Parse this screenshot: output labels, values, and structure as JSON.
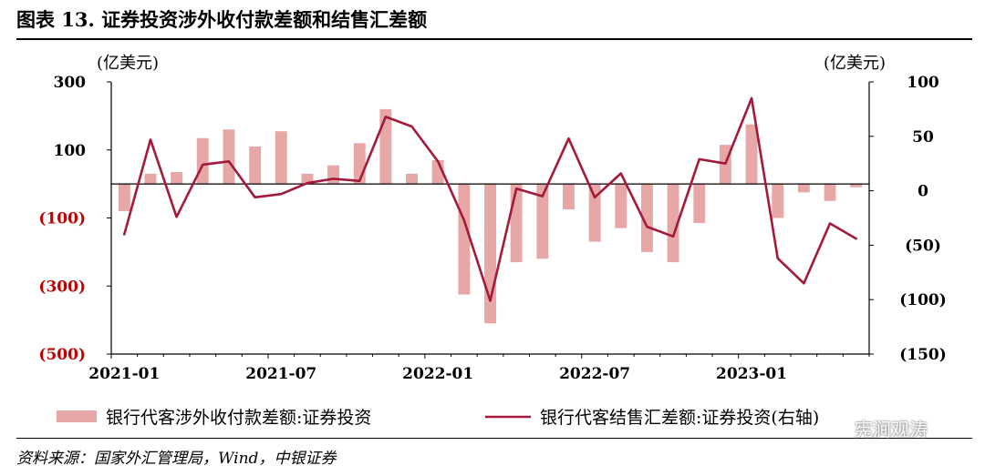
{
  "title": "图表 13. 证券投资涉外收付款差额和结售汇差额",
  "source": "资料来源：国家外汇管理局，Wind，中银证券",
  "watermark": "宪涧观涛",
  "colors": {
    "bar": "#e8a7a7",
    "line": "#a31a3a",
    "negative_tick": "#c00000",
    "axis": "#000000"
  },
  "chart_data": {
    "type": "bar+line",
    "left_unit": "(亿美元)",
    "right_unit": "(亿美元)",
    "left_ylim": [
      -500,
      300
    ],
    "right_ylim": [
      -150,
      100
    ],
    "left_ticks": [
      300,
      100,
      -100,
      -300,
      -500
    ],
    "left_tick_labels": [
      "300",
      "100",
      "(100)",
      "(300)",
      "(500)"
    ],
    "right_ticks": [
      100,
      50,
      0,
      -50,
      -100,
      -150
    ],
    "right_tick_labels": [
      "100",
      "50",
      "0",
      "(50)",
      "(100)",
      "(150)"
    ],
    "x": [
      "2021-01",
      "2021-02",
      "2021-03",
      "2021-04",
      "2021-05",
      "2021-06",
      "2021-07",
      "2021-08",
      "2021-09",
      "2021-10",
      "2021-11",
      "2021-12",
      "2022-01",
      "2022-02",
      "2022-03",
      "2022-04",
      "2022-05",
      "2022-06",
      "2022-07",
      "2022-08",
      "2022-09",
      "2022-10",
      "2022-11",
      "2022-12",
      "2023-01",
      "2023-02",
      "2023-03",
      "2023-04",
      "2023-05"
    ],
    "x_tick_labels": [
      "2021-01",
      "2021-07",
      "2022-01",
      "2022-07",
      "2023-01"
    ],
    "x_tick_indices": [
      0,
      6,
      12,
      18,
      24
    ],
    "series": [
      {
        "name": "银行代客涉外收付款差额:证券投资",
        "type": "bar",
        "axis": "left",
        "values": [
          -80,
          30,
          35,
          135,
          160,
          110,
          155,
          30,
          55,
          120,
          220,
          30,
          70,
          -325,
          -410,
          -230,
          -220,
          -75,
          -170,
          -130,
          -200,
          -230,
          -115,
          115,
          175,
          -100,
          -25,
          -50,
          -10
        ]
      },
      {
        "name": "银行代客结售汇差额:证券投资(右轴)",
        "type": "line",
        "axis": "right",
        "values": [
          -40,
          47,
          -24,
          24,
          27,
          -6,
          -3,
          7,
          11,
          9,
          68,
          59,
          27,
          -27,
          -101,
          2,
          -5,
          48,
          -6,
          16,
          -33,
          -42,
          29,
          25,
          85,
          -62,
          -85,
          -30,
          -44
        ]
      }
    ],
    "legend_position": "bottom"
  }
}
